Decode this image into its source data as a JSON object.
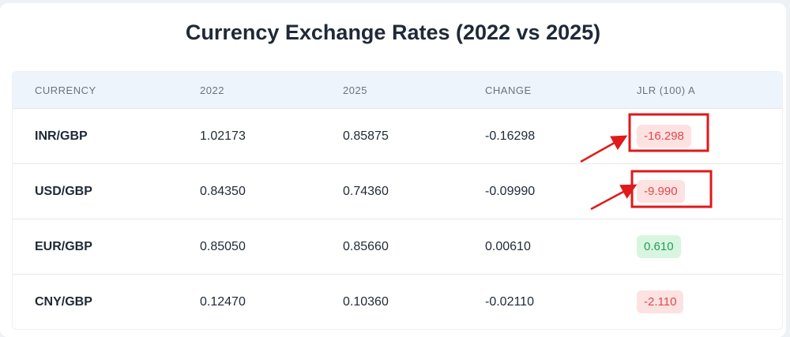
{
  "title": "Currency Exchange Rates (2022 vs 2025)",
  "columns": [
    "CURRENCY",
    "2022",
    "2025",
    "CHANGE",
    "JLR (100) A"
  ],
  "rows": [
    {
      "currency": "INR/GBP",
      "y2022": "1.02173",
      "y2025": "0.85875",
      "change": "-0.16298",
      "jlr": "-16.298",
      "status": "negative"
    },
    {
      "currency": "USD/GBP",
      "y2022": "0.84350",
      "y2025": "0.74360",
      "change": "-0.09990",
      "jlr": "-9.990",
      "status": "negative"
    },
    {
      "currency": "EUR/GBP",
      "y2022": "0.85050",
      "y2025": "0.85660",
      "change": "0.00610",
      "jlr": "0.610",
      "status": "positive"
    },
    {
      "currency": "CNY/GBP",
      "y2022": "0.12470",
      "y2025": "0.10360",
      "change": "-0.02110",
      "jlr": "-2.110",
      "status": "negative"
    }
  ],
  "colors": {
    "negative_text": "#e0484b",
    "positive_text": "#22a055",
    "annotation": "#e0191b"
  }
}
